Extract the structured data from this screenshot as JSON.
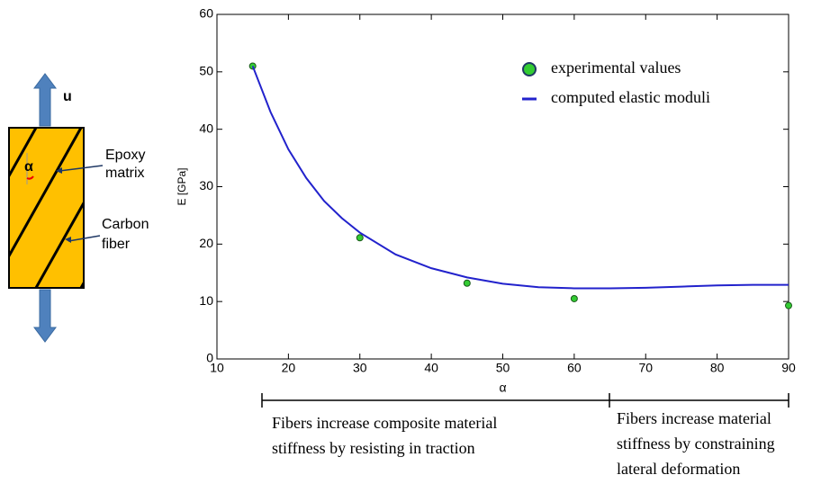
{
  "chart_data": {
    "type": "line",
    "xlabel": "α",
    "ylabel": "E [GPa]",
    "xlim": [
      10,
      90
    ],
    "xticks": [
      10,
      20,
      30,
      40,
      50,
      60,
      70,
      80,
      90
    ],
    "ylim": [
      0,
      60
    ],
    "yticks": [
      0,
      10,
      20,
      30,
      40,
      50,
      60
    ],
    "series": [
      {
        "name": "experimental values",
        "type": "scatter",
        "color": "#33cc33",
        "x": [
          15,
          30,
          45,
          60,
          90
        ],
        "values": [
          51,
          21.1,
          13.2,
          10.5,
          9.3
        ]
      },
      {
        "name": "computed elastic moduli",
        "type": "line",
        "color": "#2222cc",
        "x": [
          15,
          17.5,
          20,
          22.5,
          25,
          27.5,
          30,
          35,
          40,
          45,
          50,
          55,
          60,
          65,
          70,
          75,
          80,
          85,
          90
        ],
        "values": [
          51,
          43,
          36.5,
          31.5,
          27.5,
          24.5,
          22,
          18.2,
          15.8,
          14.2,
          13.1,
          12.5,
          12.3,
          12.3,
          12.4,
          12.6,
          12.8,
          12.9,
          12.9
        ]
      }
    ],
    "annotations": [
      {
        "lines": [
          "Fibers increase composite material",
          "stiffness by resisting in traction"
        ]
      },
      {
        "lines": [
          "Fibers increase material",
          "stiffness by constraining",
          "lateral deformation"
        ]
      }
    ]
  },
  "diagram": {
    "load": "u",
    "angle": "α",
    "matrix": [
      "Epoxy",
      "matrix"
    ],
    "fiber": [
      "Carbon",
      "fiber"
    ]
  }
}
